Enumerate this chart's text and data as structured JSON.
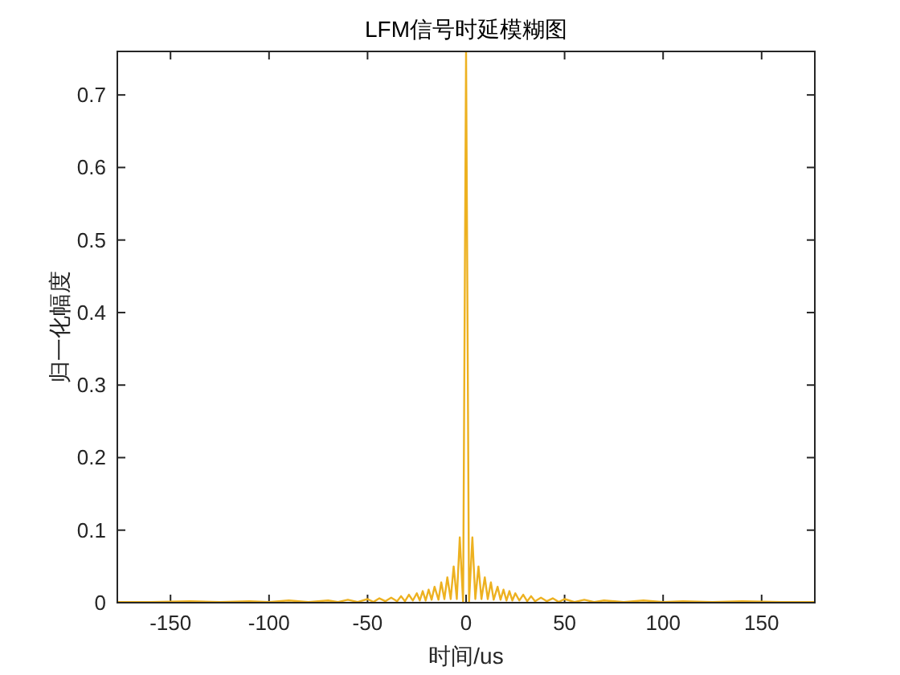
{
  "chart_data": {
    "type": "line",
    "title": "LFM信号时延模糊图",
    "xlabel": "时间/us",
    "ylabel": "归一化幅度",
    "x": [
      -177,
      -160,
      -140,
      -125,
      -110,
      -100,
      -90,
      -80,
      -70,
      -65,
      -60,
      -55,
      -50,
      -47,
      -44,
      -41,
      -38,
      -35,
      -33,
      -31,
      -29,
      -27,
      -25,
      -23.5,
      -22,
      -20.5,
      -19,
      -17.5,
      -16,
      -14,
      -12.6,
      -11,
      -9.5,
      -7.8,
      -6.3,
      -4.7,
      -3.2,
      -1.5,
      0,
      1.5,
      3.2,
      4.7,
      6.3,
      7.8,
      9.5,
      11,
      12.6,
      14,
      16,
      17.5,
      19,
      20.5,
      22,
      23.5,
      25,
      27,
      29,
      31,
      33,
      35,
      38,
      41,
      44,
      47,
      50,
      55,
      60,
      65,
      70,
      80,
      90,
      100,
      110,
      125,
      140,
      160,
      177
    ],
    "series": [
      {
        "color": "#edb120",
        "values": [
          0.001,
          0.001,
          0.002,
          0.001,
          0.002,
          0.001,
          0.003,
          0.001,
          0.003,
          0.001,
          0.004,
          0.001,
          0.005,
          0.001,
          0.006,
          0.002,
          0.007,
          0.002,
          0.009,
          0.002,
          0.011,
          0.003,
          0.013,
          0.003,
          0.016,
          0.003,
          0.018,
          0.004,
          0.022,
          0.004,
          0.028,
          0.005,
          0.035,
          0.005,
          0.05,
          0.005,
          0.09,
          0.0,
          0.76,
          0.0,
          0.09,
          0.005,
          0.05,
          0.005,
          0.035,
          0.005,
          0.028,
          0.004,
          0.022,
          0.004,
          0.018,
          0.003,
          0.016,
          0.003,
          0.013,
          0.003,
          0.011,
          0.002,
          0.009,
          0.002,
          0.007,
          0.002,
          0.006,
          0.001,
          0.005,
          0.001,
          0.004,
          0.001,
          0.003,
          0.001,
          0.003,
          0.001,
          0.002,
          0.001,
          0.002,
          0.001,
          0.001
        ]
      }
    ],
    "xlim": [
      -177,
      177
    ],
    "ylim": [
      0,
      0.76
    ],
    "xticks": [
      -150,
      -100,
      -50,
      0,
      50,
      100,
      150
    ],
    "yticks": [
      0,
      0.1,
      0.2,
      0.3,
      0.4,
      0.5,
      0.6,
      0.7
    ],
    "grid": false
  }
}
